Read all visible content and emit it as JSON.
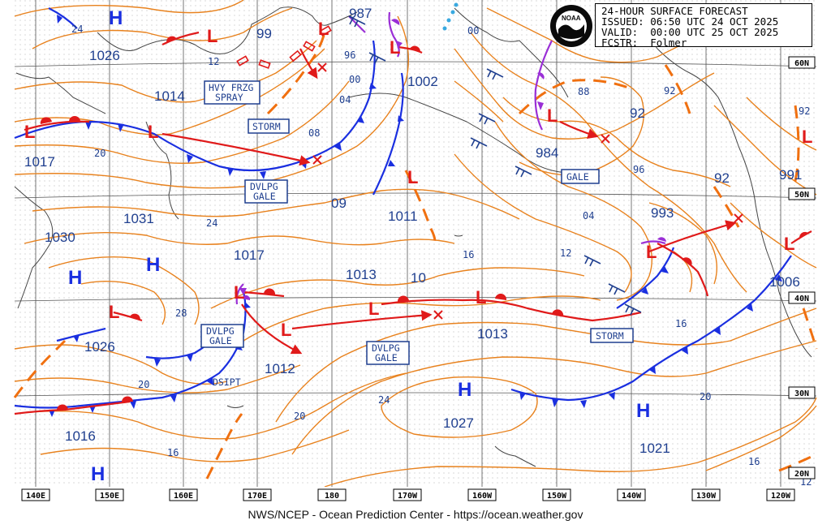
{
  "header": {
    "line1": "24-HOUR SURFACE FORECAST",
    "line2": "ISSUED: 06:50 UTC 24 OCT 2025",
    "line3": "VALID:  00:00 UTC 25 OCT 2025",
    "line4": "FCSTR:  Folmer",
    "logo_text": "NOAA"
  },
  "footer": "NWS/NCEP - Ocean Prediction Center - https://ocean.weather.gov",
  "lon_labels": [
    "140E",
    "150E",
    "160E",
    "170E",
    "180",
    "170W",
    "160W",
    "150W",
    "140W",
    "130W",
    "120W"
  ],
  "lat_labels": [
    "60N",
    "50N",
    "40N",
    "30N",
    "20N"
  ],
  "pressure_labels": [
    "1026",
    "1017",
    "1014",
    "99",
    "987",
    "1002",
    "984",
    "92",
    "993",
    "991",
    "1006",
    "1031",
    "1030",
    "1017",
    "1011",
    "1013",
    "1013",
    "1026",
    "1012",
    "1027",
    "1016",
    "1021",
    "92",
    "88"
  ],
  "isobar_labels": [
    "24",
    "12",
    "96",
    "00",
    "04",
    "08",
    "09",
    "20",
    "24",
    "28",
    "20",
    "16",
    "16",
    "10",
    "04",
    "12",
    "96",
    "16",
    "20",
    "16",
    "12",
    "92",
    "00"
  ],
  "highs": [
    "H",
    "H",
    "H",
    "H",
    "H",
    "H"
  ],
  "lows": [
    "L",
    "L",
    "L",
    "L",
    "L",
    "L",
    "L",
    "L",
    "L",
    "L",
    "L",
    "L",
    "L",
    "L",
    "L"
  ],
  "warnings": {
    "hvy_frzg": [
      "HVY FRZG",
      "SPRAY"
    ],
    "storm_1": "STORM",
    "dvlpg_gale_1": [
      "DVLPG",
      "GALE"
    ],
    "gale": "GALE",
    "dvlpg_gale_2": [
      "DVLPG",
      "GALE"
    ],
    "dvlpg_gale_3": [
      "DVLPG",
      "GALE"
    ],
    "storm_2": "STORM",
    "dsipt": "DSIPT"
  },
  "colors": {
    "isobar": "#e8821e",
    "cold_front": "#1a2fe0",
    "warm_front": "#e01a1a",
    "occluded": "#9a2fd6",
    "trough": "#f07010",
    "low": "#e01a1a",
    "high": "#1a2fe0",
    "coast": "#444444",
    "grid": "#555555"
  }
}
